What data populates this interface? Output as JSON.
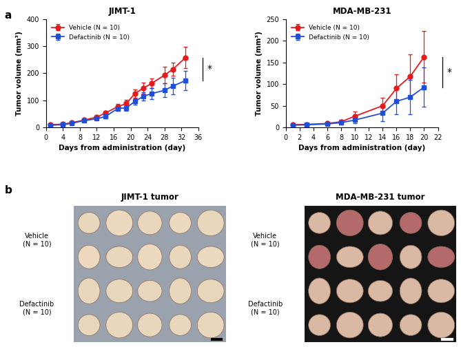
{
  "chart_data": [
    {
      "type": "line",
      "title": "JIMT-1",
      "x_label": "Days from administration (day)",
      "y_label": "Tumor volume (mm³)",
      "x": [
        1,
        4,
        6,
        9,
        12,
        14,
        17,
        19,
        21,
        23,
        25,
        28,
        30,
        33
      ],
      "series": [
        {
          "name": "Vehicle (N = 10)",
          "color": "#e41a1c",
          "marker": "o",
          "values": [
            10,
            12,
            17,
            27,
            38,
            53,
            77,
            88,
            125,
            145,
            163,
            193,
            215,
            258
          ],
          "errors": [
            2,
            3,
            3,
            4,
            5,
            8,
            10,
            15,
            15,
            20,
            18,
            30,
            25,
            40
          ]
        },
        {
          "name": "Defactinib (N = 10)",
          "color": "#1f4fd8",
          "marker": "s",
          "values": [
            8,
            10,
            15,
            25,
            32,
            40,
            70,
            72,
            96,
            115,
            125,
            137,
            153,
            173
          ],
          "errors": [
            2,
            2,
            3,
            4,
            4,
            6,
            10,
            12,
            12,
            15,
            20,
            25,
            30,
            35
          ]
        }
      ],
      "xlim": [
        0,
        36
      ],
      "xticks": [
        0,
        4,
        8,
        12,
        16,
        20,
        24,
        28,
        32,
        36
      ],
      "ylim": [
        0,
        400
      ],
      "yticks": [
        0,
        100,
        200,
        300,
        400
      ],
      "legend": "upper left",
      "annotation": "*"
    },
    {
      "type": "line",
      "title": "MDA-MB-231",
      "x_label": "Days from administration (day)",
      "y_label": "Tumor volume (mm³)",
      "x": [
        1,
        3,
        6,
        8,
        10,
        14,
        16,
        18,
        20
      ],
      "series": [
        {
          "name": "Vehicle (N = 10)",
          "color": "#e41a1c",
          "marker": "o",
          "values": [
            6,
            7,
            9,
            13,
            26,
            50,
            90,
            118,
            163
          ],
          "errors": [
            1,
            2,
            3,
            4,
            10,
            18,
            33,
            50,
            60
          ]
        },
        {
          "name": "Defactinib (N = 10)",
          "color": "#1f4fd8",
          "marker": "s",
          "values": [
            5,
            6,
            8,
            11,
            17,
            33,
            60,
            70,
            93
          ],
          "errors": [
            1,
            1,
            2,
            4,
            8,
            18,
            30,
            40,
            45
          ]
        }
      ],
      "xlim": [
        0,
        22
      ],
      "xticks": [
        0,
        2,
        4,
        6,
        8,
        10,
        12,
        14,
        16,
        18,
        20,
        22
      ],
      "ylim": [
        0,
        250
      ],
      "yticks": [
        0,
        50,
        100,
        150,
        200,
        250
      ],
      "legend": "upper left",
      "annotation": "*"
    }
  ],
  "panel_labels": [
    "a",
    "b"
  ],
  "photos": [
    {
      "title": "JIMT-1 tumor",
      "rows": [
        "Vehicle\n(N = 10)",
        "Defactinib\n(N = 10)"
      ]
    },
    {
      "title": "MDA-MB-231 tumor",
      "rows": [
        "Vehicle\n(N = 10)",
        "Defactinib\n(N = 10)"
      ]
    }
  ]
}
